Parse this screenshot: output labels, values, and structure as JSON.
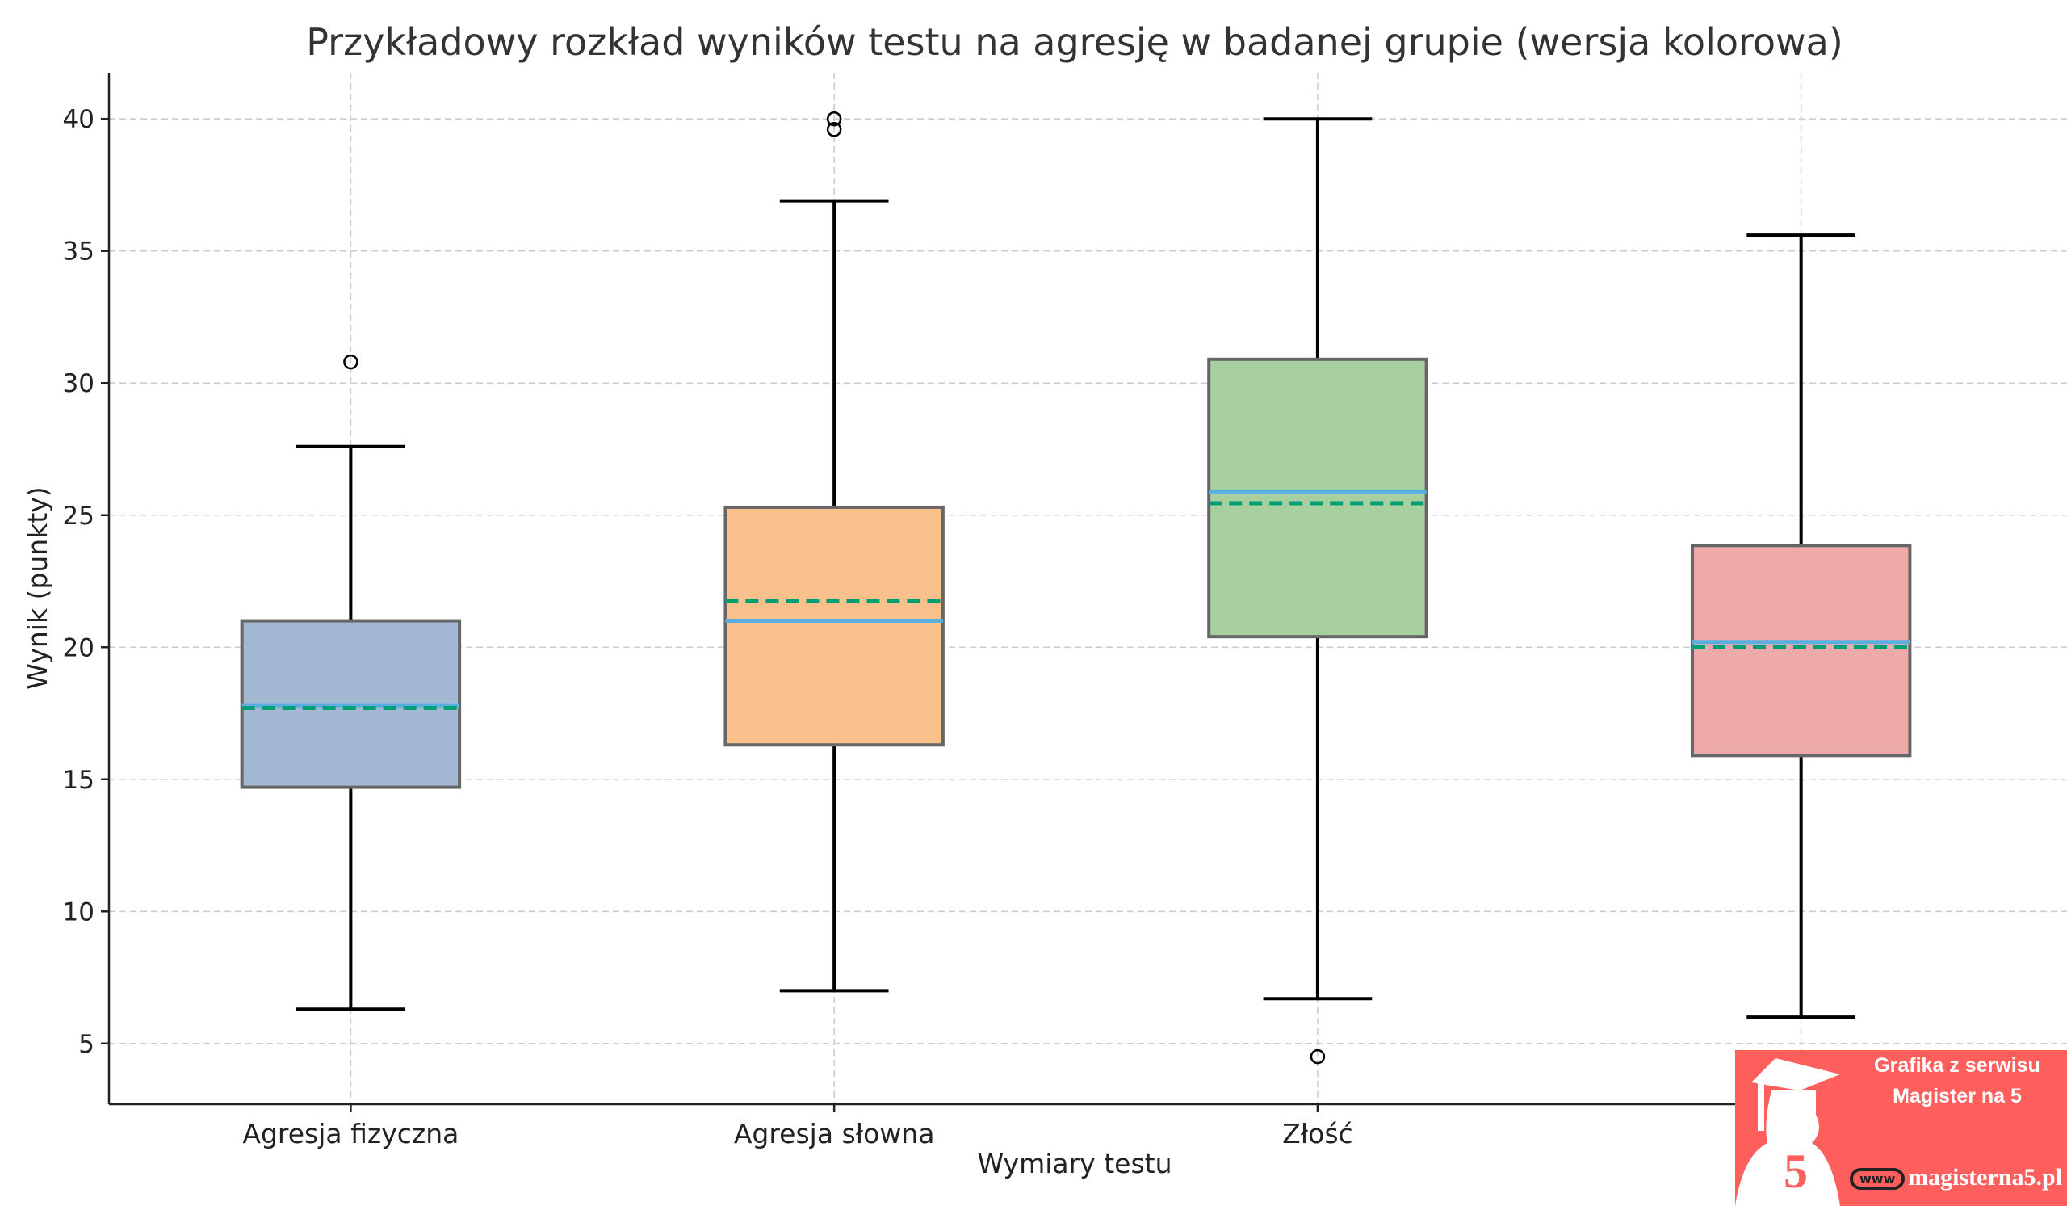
{
  "chart_data": {
    "type": "box",
    "title": "Przykładowy rozkład wyników testu na agresję w badanej grupie (wersja kolorowa)",
    "xlabel": "Wymiary testu",
    "ylabel": "Wynik (punkty)",
    "categories": [
      "Agresja fizyczna",
      "Agresja słowna",
      "Złość",
      ""
    ],
    "ylim": [
      2.7,
      41.75
    ],
    "yticks": [
      5,
      10,
      15,
      20,
      25,
      30,
      35,
      40
    ],
    "grid": true,
    "series": [
      {
        "name": "Agresja fizyczna",
        "whisker_low": 6.3,
        "q1": 14.7,
        "median": 17.8,
        "mean": 17.7,
        "q3": 21.0,
        "whisker_high": 27.6,
        "outliers": [
          30.8
        ],
        "color": "#a3b9d3"
      },
      {
        "name": "Agresja słowna",
        "whisker_low": 7.0,
        "q1": 16.3,
        "median": 21.0,
        "mean": 21.75,
        "q3": 25.3,
        "whisker_high": 36.9,
        "outliers": [
          39.6,
          40.0
        ],
        "color": "#f8c18b"
      },
      {
        "name": "Złość",
        "whisker_low": 6.7,
        "q1": 20.4,
        "median": 25.9,
        "mean": 25.45,
        "q3": 30.9,
        "whisker_high": 40.0,
        "outliers": [
          4.5
        ],
        "color": "#a8cf9f"
      },
      {
        "name": "",
        "whisker_low": 6.0,
        "q1": 15.9,
        "median": 20.2,
        "mean": 20.0,
        "q3": 23.85,
        "whisker_high": 35.6,
        "outliers": [],
        "color": "#eeaaa8"
      }
    ],
    "median_color": "#5aafe0",
    "mean_color": "#009e73"
  },
  "watermark": {
    "line1": "Grafika z serwisu",
    "line2": "Magister na 5",
    "www": "www",
    "url": "magisterna5.pl",
    "digit": "5"
  }
}
